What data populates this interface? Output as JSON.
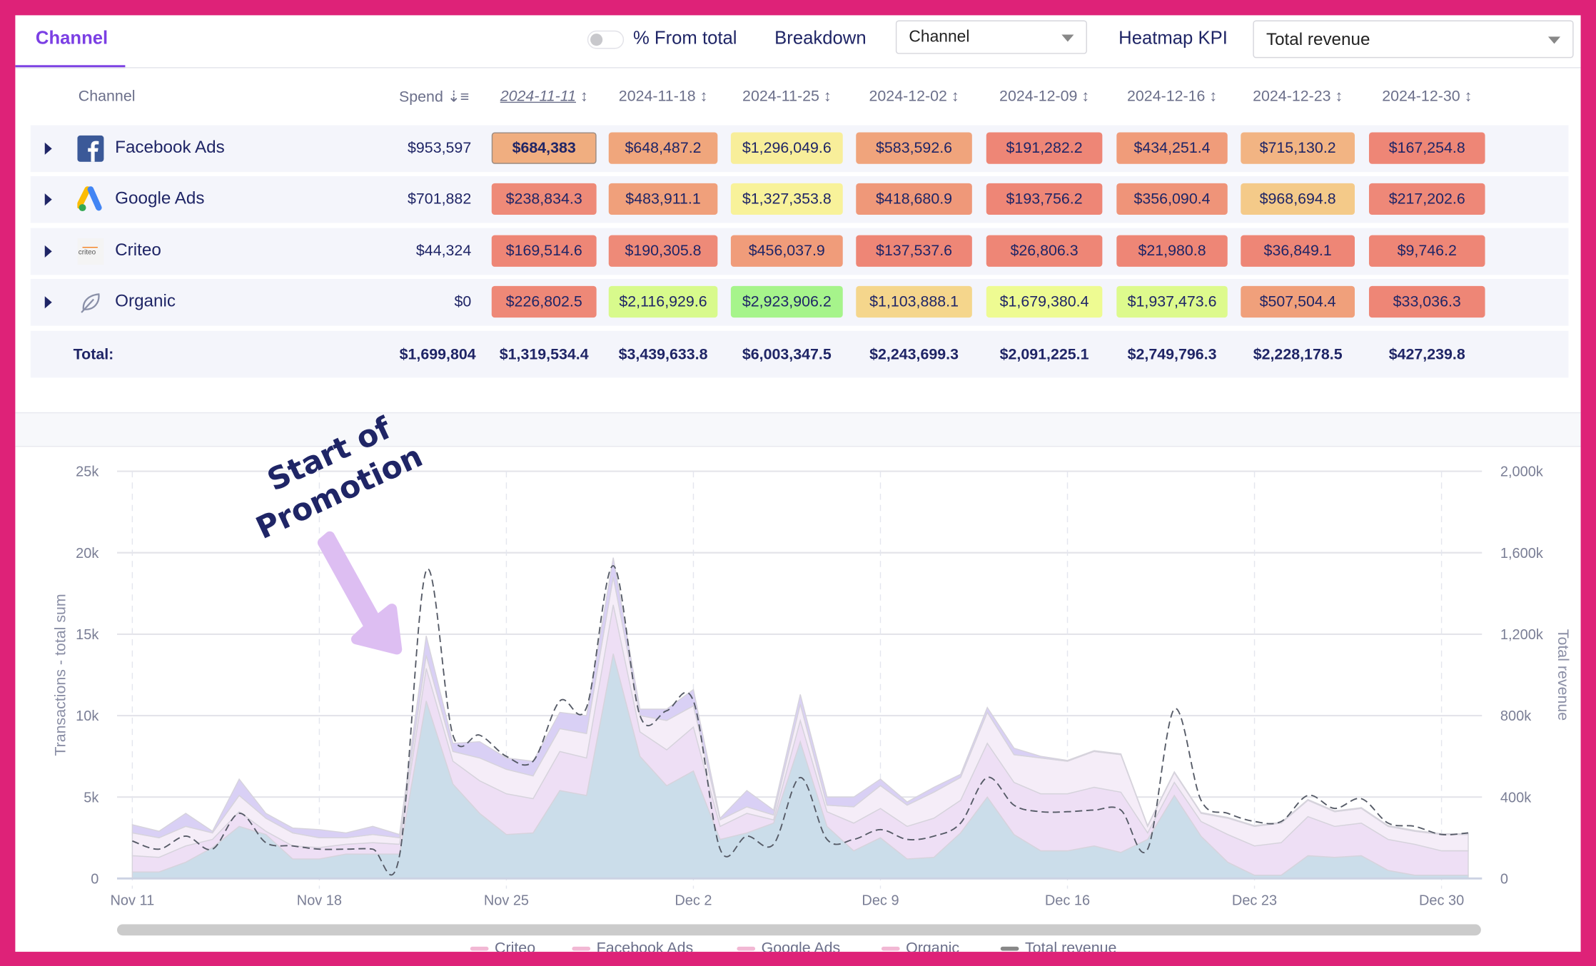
{
  "tabs": [
    {
      "label": "Channel",
      "active": true
    }
  ],
  "controls": {
    "pct_from_total_label": "% From total",
    "pct_from_total_on": false,
    "breakdown_label": "Breakdown",
    "breakdown_value": "Channel",
    "heatmap_kpi_label": "Heatmap KPI",
    "heatmap_kpi_value": "Total revenue"
  },
  "table": {
    "channel_header": "Channel",
    "spend_header": "Spend",
    "date_headers": [
      "2024-11-11",
      "2024-11-18",
      "2024-11-25",
      "2024-12-02",
      "2024-12-09",
      "2024-12-16",
      "2024-12-23",
      "2024-12-30"
    ],
    "rows": [
      {
        "name": "Facebook Ads",
        "icon": "facebook-icon",
        "spend": "$953,597",
        "cells": [
          "$684,383",
          "$648,487.2",
          "$1,296,049.6",
          "$583,592.6",
          "$191,282.2",
          "$434,251.4",
          "$715,130.2",
          "$167,254.8"
        ],
        "colors": [
          "#F0AE80",
          "#F0A67C",
          "#F8EE9A",
          "#F0A47C",
          "#EE8676",
          "#F09C7A",
          "#F2B483",
          "#EE8676"
        ]
      },
      {
        "name": "Google Ads",
        "icon": "google-ads-icon",
        "spend": "$701,882",
        "cells": [
          "$238,834.3",
          "$483,911.1",
          "$1,327,353.8",
          "$418,680.9",
          "$193,756.2",
          "$356,090.4",
          "$968,694.8",
          "$217,202.6"
        ],
        "colors": [
          "#EE8A78",
          "#F0A07B",
          "#F8F29A",
          "#EF9879",
          "#EE8676",
          "#EF9479",
          "#F4CA89",
          "#EE8878"
        ]
      },
      {
        "name": "Criteo",
        "icon": "criteo-icon",
        "spend": "$44,324",
        "cells": [
          "$169,514.6",
          "$190,305.8",
          "$456,037.9",
          "$137,537.6",
          "$26,806.3",
          "$21,980.8",
          "$36,849.1",
          "$9,746.2"
        ],
        "colors": [
          "#EE8676",
          "#EE8A78",
          "#F09C7A",
          "#EE8676",
          "#EE8676",
          "#EE8676",
          "#EE8676",
          "#EE8676"
        ]
      },
      {
        "name": "Organic",
        "icon": "leaf-icon",
        "spend": "$0",
        "cells": [
          "$226,802.5",
          "$2,116,929.6",
          "$2,923,906.2",
          "$1,103,888.1",
          "$1,679,380.4",
          "$1,937,473.6",
          "$507,504.4",
          "$33,036.3"
        ],
        "colors": [
          "#EE8877",
          "#D8FA8C",
          "#A6F48B",
          "#F5D68C",
          "#EEFB92",
          "#DDFA8D",
          "#F0A07B",
          "#EE8676"
        ]
      }
    ],
    "total_label": "Total:",
    "total_spend": "$1,699,804",
    "totals": [
      "$1,319,534.4",
      "$3,439,633.8",
      "$6,003,347.5",
      "$2,243,699.3",
      "$2,091,225.1",
      "$2,749,796.3",
      "$2,228,178.5",
      "$427,239.8"
    ]
  },
  "annotation": {
    "line1": "Start of",
    "line2": "Promotion",
    "arrow_color": "#DDBEF2"
  },
  "chart_data": {
    "type": "area",
    "stacked": true,
    "x_start": "2024-11-11",
    "x_ticks": [
      "Nov 11",
      "Nov 18",
      "Nov 25",
      "Dec 2",
      "Dec 9",
      "Dec 16",
      "Dec 23",
      "Dec 30"
    ],
    "ylabel": "Transactions - total sum",
    "y2label": "Total revenue",
    "ylim": [
      0,
      25000
    ],
    "y_ticks": [
      "0",
      "5k",
      "10k",
      "15k",
      "20k",
      "25k"
    ],
    "y2lim": [
      0,
      2000000
    ],
    "y2_ticks": [
      "0",
      "400k",
      "800k",
      "1,200k",
      "1,600k",
      "2,000k"
    ],
    "grid": true,
    "legend_position": "bottom",
    "series": [
      {
        "name": "Organic",
        "color": "#CBDDEA",
        "values_k": [
          0.4,
          0.4,
          1.0,
          1.9,
          3.2,
          2.7,
          1.2,
          1.2,
          1.5,
          1.5,
          1.5,
          10.9,
          5.8,
          4.0,
          2.7,
          2.8,
          5.4,
          5.1,
          13.8,
          7.5,
          5.7,
          6.6,
          2.4,
          2.8,
          3.4,
          8.4,
          3.2,
          1.7,
          2.5,
          1.2,
          1.3,
          2.8,
          5.0,
          2.7,
          1.7,
          1.7,
          2.0,
          1.6,
          2.4,
          5.1,
          2.6,
          1.0,
          0.2,
          0.2,
          1.4,
          1.3,
          1.4,
          0.5,
          0.2,
          0.2,
          0.2
        ]
      },
      {
        "name": "Google Ads",
        "color": "#EEDFF5",
        "values_k": [
          1.0,
          0.9,
          1.0,
          0.5,
          0.9,
          0.2,
          0.8,
          0.7,
          0.6,
          0.7,
          0.6,
          2.0,
          1.4,
          2.0,
          2.5,
          2.1,
          2.4,
          2.3,
          3.0,
          1.5,
          2.2,
          2.7,
          0.8,
          1.2,
          0.2,
          1.3,
          0.9,
          1.7,
          1.8,
          2.0,
          2.4,
          2.0,
          3.3,
          3.2,
          3.5,
          3.5,
          3.6,
          3.7,
          0.4,
          0.8,
          0.9,
          1.7,
          1.8,
          2.0,
          2.4,
          1.9,
          2.0,
          1.9,
          1.9,
          1.5,
          1.5
        ]
      },
      {
        "name": "Facebook Ads",
        "color": "#F5EDF8",
        "values_k": [
          1.4,
          1.2,
          1.2,
          0.4,
          1.0,
          0.8,
          0.8,
          0.6,
          0.4,
          0.5,
          0.4,
          0.8,
          0.6,
          1.4,
          1.5,
          1.4,
          1.4,
          1.5,
          1.7,
          1.0,
          1.8,
          1.3,
          0.4,
          0.4,
          0.3,
          1.0,
          0.4,
          1.0,
          1.4,
          1.3,
          1.6,
          1.4,
          1.9,
          1.7,
          2.2,
          2.0,
          2.2,
          2.3,
          0.4,
          0.6,
          0.5,
          1.0,
          1.2,
          1.2,
          1.0,
          0.9,
          0.9,
          0.8,
          0.8,
          1.0,
          1.0
        ]
      },
      {
        "name": "Criteo",
        "color": "#D9D0F5",
        "values_k": [
          0.5,
          0.4,
          0.8,
          0.1,
          1.0,
          0.3,
          0.3,
          0.5,
          0.3,
          0.5,
          0.2,
          1.2,
          0.5,
          1.0,
          0.7,
          0.9,
          1.0,
          1.1,
          1.2,
          0.4,
          0.7,
          1.0,
          0.1,
          1.0,
          0.3,
          0.6,
          0.5,
          0.6,
          0.4,
          0.2,
          0.3,
          0.2,
          0.3,
          0.4,
          0.1,
          0.05,
          0.05,
          0.05,
          0.05,
          0.05,
          0.05,
          0.05,
          0.05,
          0.05,
          0.05,
          0.05,
          0.05,
          0.05,
          0.05,
          0.05,
          0.05
        ]
      }
    ],
    "line": {
      "name": "Total revenue",
      "axis": "right",
      "color": "#555A66",
      "values_k": [
        184,
        144,
        208,
        144,
        320,
        176,
        160,
        144,
        144,
        144,
        112,
        1512,
        704,
        704,
        600,
        576,
        872,
        840,
        1536,
        800,
        824,
        872,
        144,
        208,
        168,
        496,
        192,
        192,
        240,
        192,
        208,
        272,
        496,
        360,
        328,
        328,
        336,
        336,
        144,
        832,
        384,
        320,
        280,
        280,
        408,
        344,
        392,
        272,
        256,
        216,
        224
      ]
    },
    "legend": [
      {
        "label": "Criteo",
        "color": "#F2B8D4"
      },
      {
        "label": "Facebook Ads",
        "color": "#F2B8D4"
      },
      {
        "label": "Google Ads",
        "color": "#F2B8D4"
      },
      {
        "label": "Organic",
        "color": "#F2B8D4"
      },
      {
        "label": "Total revenue",
        "color": "#888"
      }
    ]
  }
}
